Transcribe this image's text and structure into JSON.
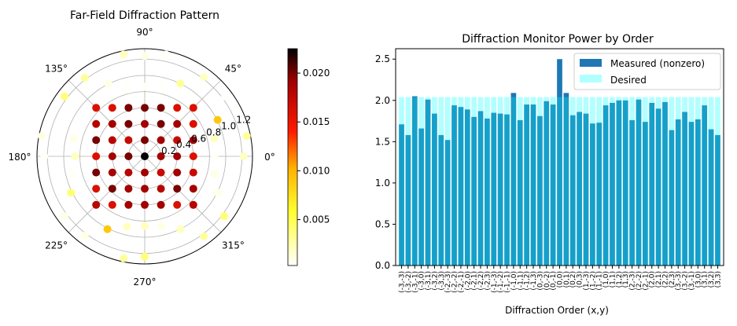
{
  "chart_data": [
    {
      "type": "scatter",
      "subtype": "polar",
      "title": "Far-Field Diffraction Pattern",
      "rlim": [
        0,
        1.33
      ],
      "radial_ticks": [
        "0.2",
        "0.4",
        "0.6",
        "0.8",
        "1.0",
        "1.2"
      ],
      "radial_tick_values": [
        0.2,
        0.4,
        0.6,
        0.8,
        1.0,
        1.2
      ],
      "angle_ticks": [
        "0°",
        "45°",
        "90°",
        "135°",
        "180°",
        "225°",
        "270°",
        "315°"
      ],
      "angle_tick_values": [
        0,
        45,
        90,
        135,
        180,
        225,
        270,
        315
      ],
      "grid": true,
      "colormap": "hot_r",
      "colorbar": {
        "min": 0.0003,
        "max": 0.0225,
        "ticks": [
          "0.005",
          "0.010",
          "0.015",
          "0.020"
        ],
        "tick_values": [
          0.005,
          0.01,
          0.015,
          0.02
        ]
      },
      "inner_grid": {
        "coords": [
          -0.6,
          -0.4,
          -0.2,
          0,
          0.2,
          0.4,
          0.6
        ],
        "rows_top_to_bottom": [
          [
            0.016,
            0.016,
            0.02,
            0.02,
            0.02,
            0.016,
            0.016
          ],
          [
            0.018,
            0.019,
            0.02,
            0.019,
            0.02,
            0.019,
            0.016
          ],
          [
            0.02,
            0.018,
            0.017,
            0.02,
            0.019,
            0.017,
            0.019
          ],
          [
            0.016,
            0.019,
            0.02,
            0.0225,
            0.019,
            0.019,
            0.016
          ],
          [
            0.02,
            0.019,
            0.018,
            0.019,
            0.017,
            0.019,
            0.017
          ],
          [
            0.016,
            0.02,
            0.019,
            0.019,
            0.018,
            0.02,
            0.019
          ],
          [
            0.018,
            0.016,
            0.019,
            0.019,
            0.019,
            0.016,
            0.018
          ]
        ]
      },
      "outer_points": [
        [
          -0.26,
          1.26,
          0.002
        ],
        [
          0,
          1.24,
          0.001
        ],
        [
          0.26,
          1.26,
          0.0005
        ],
        [
          -0.74,
          0.97,
          0.003
        ],
        [
          -0.45,
          0.9,
          0.001
        ],
        [
          -0.22,
          0.87,
          0.0005
        ],
        [
          0,
          0.86,
          0.0005
        ],
        [
          0.21,
          0.87,
          0.0005
        ],
        [
          0.44,
          0.9,
          0.003
        ],
        [
          0.73,
          0.98,
          0.002
        ],
        [
          -0.99,
          0.74,
          0.004
        ],
        [
          0.99,
          0.74,
          0.0005
        ],
        [
          0.9,
          0.45,
          0.009
        ],
        [
          1.26,
          0.25,
          0.003
        ],
        [
          -1.27,
          0.25,
          0.001
        ],
        [
          -0.88,
          0.22,
          0.001
        ],
        [
          0.86,
          0.22,
          0.002
        ],
        [
          -1.24,
          0,
          0.0005
        ],
        [
          -0.86,
          0,
          0.002
        ],
        [
          0.86,
          0,
          0.0005
        ],
        [
          1.22,
          0,
          0.002
        ],
        [
          -0.88,
          -0.22,
          0.0005
        ],
        [
          0.86,
          -0.22,
          0.001
        ],
        [
          -0.91,
          -0.45,
          0.004
        ],
        [
          0.9,
          -0.45,
          0.001
        ],
        [
          -0.99,
          -0.74,
          0.001
        ],
        [
          0.98,
          -0.74,
          0.004
        ],
        [
          -0.74,
          -0.98,
          0.001
        ],
        [
          -0.46,
          -0.9,
          0.009
        ],
        [
          -0.22,
          -0.87,
          0.002
        ],
        [
          0,
          -0.86,
          0.002
        ],
        [
          0.21,
          -0.87,
          0.001
        ],
        [
          0.44,
          -0.9,
          0.002
        ],
        [
          0.73,
          -0.99,
          0.003
        ],
        [
          -0.26,
          -1.26,
          0.003
        ],
        [
          0,
          -1.24,
          0.004
        ]
      ]
    },
    {
      "type": "bar",
      "title": "Diffraction Monitor Power by Order",
      "xlabel": "Diffraction Order (x,y)",
      "ylabel": "",
      "ylim": [
        0,
        2.626
      ],
      "yticks": [
        "0.0",
        "0.5",
        "1.0",
        "1.5",
        "2.0",
        "2.5"
      ],
      "ytick_values": [
        0,
        0.5,
        1.0,
        1.5,
        2.0,
        2.5
      ],
      "legend": {
        "placement": "top-right",
        "entries": [
          "Measured (nonzero)",
          "Desired"
        ]
      },
      "categories": [
        "(-3,-3)",
        "(-3,-2)",
        "(-3,-1)",
        "(-3,0)",
        "(-3,1)",
        "(-3,2)",
        "(-3,3)",
        "(-2,-3)",
        "(-2,-2)",
        "(-2,-1)",
        "(-2,0)",
        "(-2,1)",
        "(-2,2)",
        "(-2,3)",
        "(-1,-3)",
        "(-1,-2)",
        "(-1,-1)",
        "(-1,0)",
        "(-1,1)",
        "(-1,2)",
        "(-1,3)",
        "(0,-3)",
        "(0,-2)",
        "(0,-1)",
        "(0,0)",
        "(0,1)",
        "(0,2)",
        "(0,3)",
        "(1,-3)",
        "(1,-2)",
        "(1,-1)",
        "(1,0)",
        "(1,1)",
        "(1,2)",
        "(1,3)",
        "(2,-3)",
        "(2,-2)",
        "(2,-1)",
        "(2,0)",
        "(2,1)",
        "(2,2)",
        "(2,3)",
        "(3,-3)",
        "(3,-2)",
        "(3,-1)",
        "(3,0)",
        "(3,1)",
        "(3,2)",
        "(3,3)"
      ],
      "series": [
        {
          "name": "Measured (nonzero)",
          "color": "#1f77b4",
          "values": [
            1.71,
            1.58,
            2.05,
            1.66,
            2.01,
            1.84,
            1.58,
            1.52,
            1.94,
            1.92,
            1.89,
            1.8,
            1.87,
            1.78,
            1.85,
            1.84,
            1.83,
            2.09,
            1.76,
            1.95,
            1.95,
            1.81,
            1.99,
            1.95,
            2.5,
            2.09,
            1.82,
            1.86,
            1.84,
            1.72,
            1.73,
            1.94,
            1.97,
            2.0,
            2.0,
            1.76,
            2.01,
            1.74,
            1.97,
            1.9,
            1.98,
            1.64,
            1.77,
            1.86,
            1.74,
            1.77,
            1.94,
            1.65,
            1.58
          ]
        },
        {
          "name": "Desired",
          "color": "#00ffff",
          "alpha": 0.3,
          "values": [
            2.04,
            2.04,
            2.04,
            2.04,
            2.04,
            2.04,
            2.04,
            2.04,
            2.04,
            2.04,
            2.04,
            2.04,
            2.04,
            2.04,
            2.04,
            2.04,
            2.04,
            2.04,
            2.04,
            2.04,
            2.04,
            2.04,
            2.04,
            2.04,
            2.04,
            2.04,
            2.04,
            2.04,
            2.04,
            2.04,
            2.04,
            2.04,
            2.04,
            2.04,
            2.04,
            2.04,
            2.04,
            2.04,
            2.04,
            2.04,
            2.04,
            2.04,
            2.04,
            2.04,
            2.04,
            2.04,
            2.04,
            2.04,
            2.04
          ]
        }
      ]
    }
  ]
}
